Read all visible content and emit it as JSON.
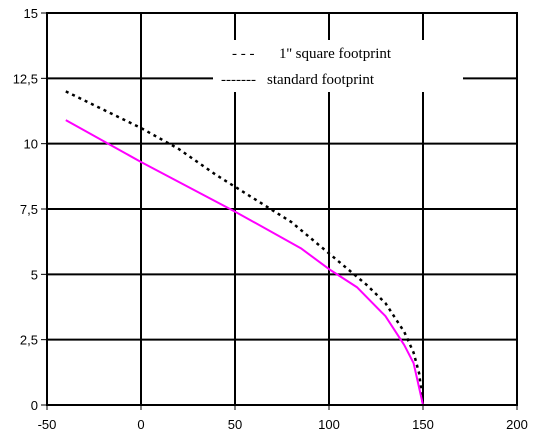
{
  "chart_data": {
    "type": "line",
    "x_ticks": [
      "-50",
      "0",
      "50",
      "100",
      "150",
      "200"
    ],
    "y_ticks": [
      "0",
      "2,5",
      "5",
      "7,5",
      "10",
      "12,5",
      "15"
    ],
    "xlim": [
      -50,
      200
    ],
    "ylim": [
      0,
      15
    ],
    "grid": true,
    "legend_position": "top-right",
    "series": [
      {
        "name": "1'' square footprint",
        "line_style": "dotted",
        "color": "#000000",
        "points": [
          [
            -40,
            12.0
          ],
          [
            -20,
            11.3
          ],
          [
            0,
            10.6
          ],
          [
            20,
            9.8
          ],
          [
            40,
            8.8
          ],
          [
            60,
            7.9
          ],
          [
            80,
            7.0
          ],
          [
            100,
            5.8
          ],
          [
            120,
            4.6
          ],
          [
            130,
            3.9
          ],
          [
            140,
            2.8
          ],
          [
            145,
            2.0
          ],
          [
            148,
            1.2
          ],
          [
            150,
            0.0
          ]
        ]
      },
      {
        "name": "standard footprint",
        "line_style": "solid",
        "color": "#ff00ff",
        "points": [
          [
            -40,
            10.9
          ],
          [
            0,
            9.3
          ],
          [
            50,
            7.4
          ],
          [
            85,
            6.0
          ],
          [
            100,
            5.2
          ],
          [
            115,
            4.5
          ],
          [
            130,
            3.4
          ],
          [
            140,
            2.3
          ],
          [
            145,
            1.6
          ],
          [
            150,
            0.0
          ]
        ]
      }
    ],
    "legend": [
      {
        "marker": "- - -",
        "label": "1'' square footprint"
      },
      {
        "marker": "-------",
        "label": "standard footprint"
      }
    ]
  }
}
